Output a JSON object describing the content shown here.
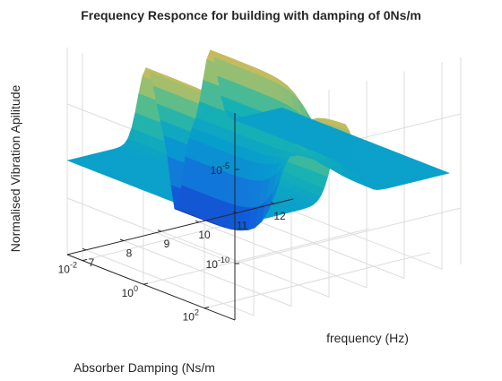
{
  "chart_data": {
    "type": "surface",
    "title": "Frequency Responce for building with damping of 0Ns/m",
    "xlabel": "frequency (Hz)",
    "ylabel": "Absorber Damping (Ns/m",
    "zlabel": "Normalised Vibration Apilitude",
    "x_ticks": [
      "7",
      "8",
      "9",
      "10",
      "11",
      "12"
    ],
    "y_ticks": [
      {
        "base": "10",
        "exp": "-2"
      },
      {
        "base": "10",
        "exp": "0"
      },
      {
        "base": "10",
        "exp": "2"
      }
    ],
    "z_ticks": [
      {
        "base": "10",
        "exp": "-10"
      },
      {
        "base": "10",
        "exp": "-5"
      }
    ],
    "x_range": [
      6.5,
      12.5
    ],
    "y_log10_range": [
      -2.5,
      3
    ],
    "z_log10_range": [
      -13,
      -2
    ],
    "z_scale": "log",
    "y_scale": "log",
    "colormap": "parula",
    "grid": true,
    "surface_features": {
      "plateau_log10_amplitude": -8.0,
      "low_damping_resonances_hz": [
        8.6,
        10.3
      ],
      "high_damping_resonance_hz": 9.4,
      "peak_log10_amplitude": -4.0,
      "antiresonance_hz": 9.4,
      "antiresonance_log10_amplitude": -12.3
    }
  }
}
